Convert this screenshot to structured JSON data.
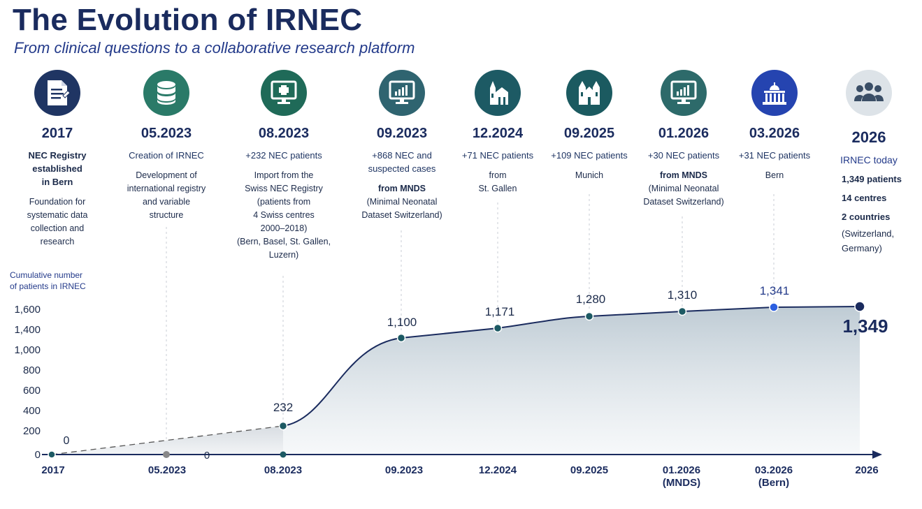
{
  "title": "The Evolution of IRNEC",
  "subtitle": "From clinical questions to a collaborative research platform",
  "milestones": [
    {
      "date": "2017",
      "icon": "document-icon",
      "color": "#1f3563",
      "headline": "NEC Registry\nestablished\nin Bern",
      "headline_bold": true,
      "desc": "Foundation for\nsystematic data\ncollection and\nresearch",
      "desc_bold": ""
    },
    {
      "date": "05.2023",
      "icon": "database-icon",
      "color": "#2a7a68",
      "headline": "Creation of IRNEC",
      "headline_bold": false,
      "desc": "Development of\ninternational registry\nand variable\nstructure",
      "desc_bold": ""
    },
    {
      "date": "08.2023",
      "icon": "medical-monitor-icon",
      "color": "#1f6a58",
      "headline": "+232 NEC patients",
      "headline_bold": false,
      "desc": "Import from the\nSwiss NEC Registry\n(patients from\n4 Swiss centres\n2000–2018)\n(Bern, Basel, St. Gallen,\nLuzern)",
      "desc_bold": ""
    },
    {
      "date": "09.2023",
      "icon": "bar-chart-monitor-icon",
      "color": "#2f6470",
      "headline": "+868 NEC and\nsuspected cases",
      "headline_bold": false,
      "desc": "(Minimal Neonatal\nDataset Switzerland)",
      "desc_bold": "from MNDS"
    },
    {
      "date": "12.2024",
      "icon": "cathedral-icon",
      "color": "#1d5a64",
      "headline": "+71 NEC patients",
      "headline_bold": false,
      "desc": "from\nSt. Gallen",
      "desc_bold": ""
    },
    {
      "date": "09.2025",
      "icon": "church-icon",
      "color": "#1b5a60",
      "headline": "+109 NEC patients",
      "headline_bold": false,
      "desc": "Munich",
      "desc_bold": ""
    },
    {
      "date": "01.2026",
      "icon": "bar-chart-monitor-icon",
      "color": "#2d6a6a",
      "headline": "+30 NEC patients",
      "headline_bold": false,
      "desc": "(Minimal Neonatal\nDataset Switzerland)",
      "desc_bold": "from MNDS"
    },
    {
      "date": "03.2026",
      "icon": "federal-palace-icon",
      "color": "#2544b0",
      "headline": "+31 NEC patients",
      "headline_bold": false,
      "desc": "Bern",
      "desc_bold": ""
    }
  ],
  "today": {
    "date": "2026",
    "icon": "people-icon",
    "color": "#dde3e8",
    "headline": "IRNEC today",
    "lines": [
      "1,349 patients",
      "14 centres",
      "2 countries"
    ],
    "note": "(Switzerland,\nGermany)"
  },
  "y_axis_label": "Cumulative number\nof patients in IRNEC",
  "chart_data": {
    "type": "line",
    "x": [
      "2017",
      "05.2023",
      "08.2023",
      "09.2023",
      "12.2024",
      "09.2025",
      "01.2026",
      "03.2026",
      "2026"
    ],
    "x_tick_labels": [
      "2017",
      "05.2023",
      "08.2023",
      "09.2023",
      "12.2024",
      "09.2025",
      "01.2026\n(MNDS)",
      "03.2026\n(Bern)",
      "2026"
    ],
    "y_tick_labels": [
      "0",
      "200",
      "400",
      "600",
      "800",
      "1,000",
      "1,400",
      "1,600"
    ],
    "series": [
      {
        "values": [
          0,
          0,
          232,
          1100,
          1171,
          1280,
          1310,
          1341,
          1349
        ]
      }
    ],
    "data_labels": [
      "0",
      "0",
      "232",
      "1,100",
      "1,171",
      "1,280",
      "1,310",
      "1,341",
      "1,349"
    ],
    "colors": {
      "line": "#1a2b5e",
      "point": "#1d5a64",
      "highlight": "#2544b0",
      "dashed": "#555555"
    }
  }
}
